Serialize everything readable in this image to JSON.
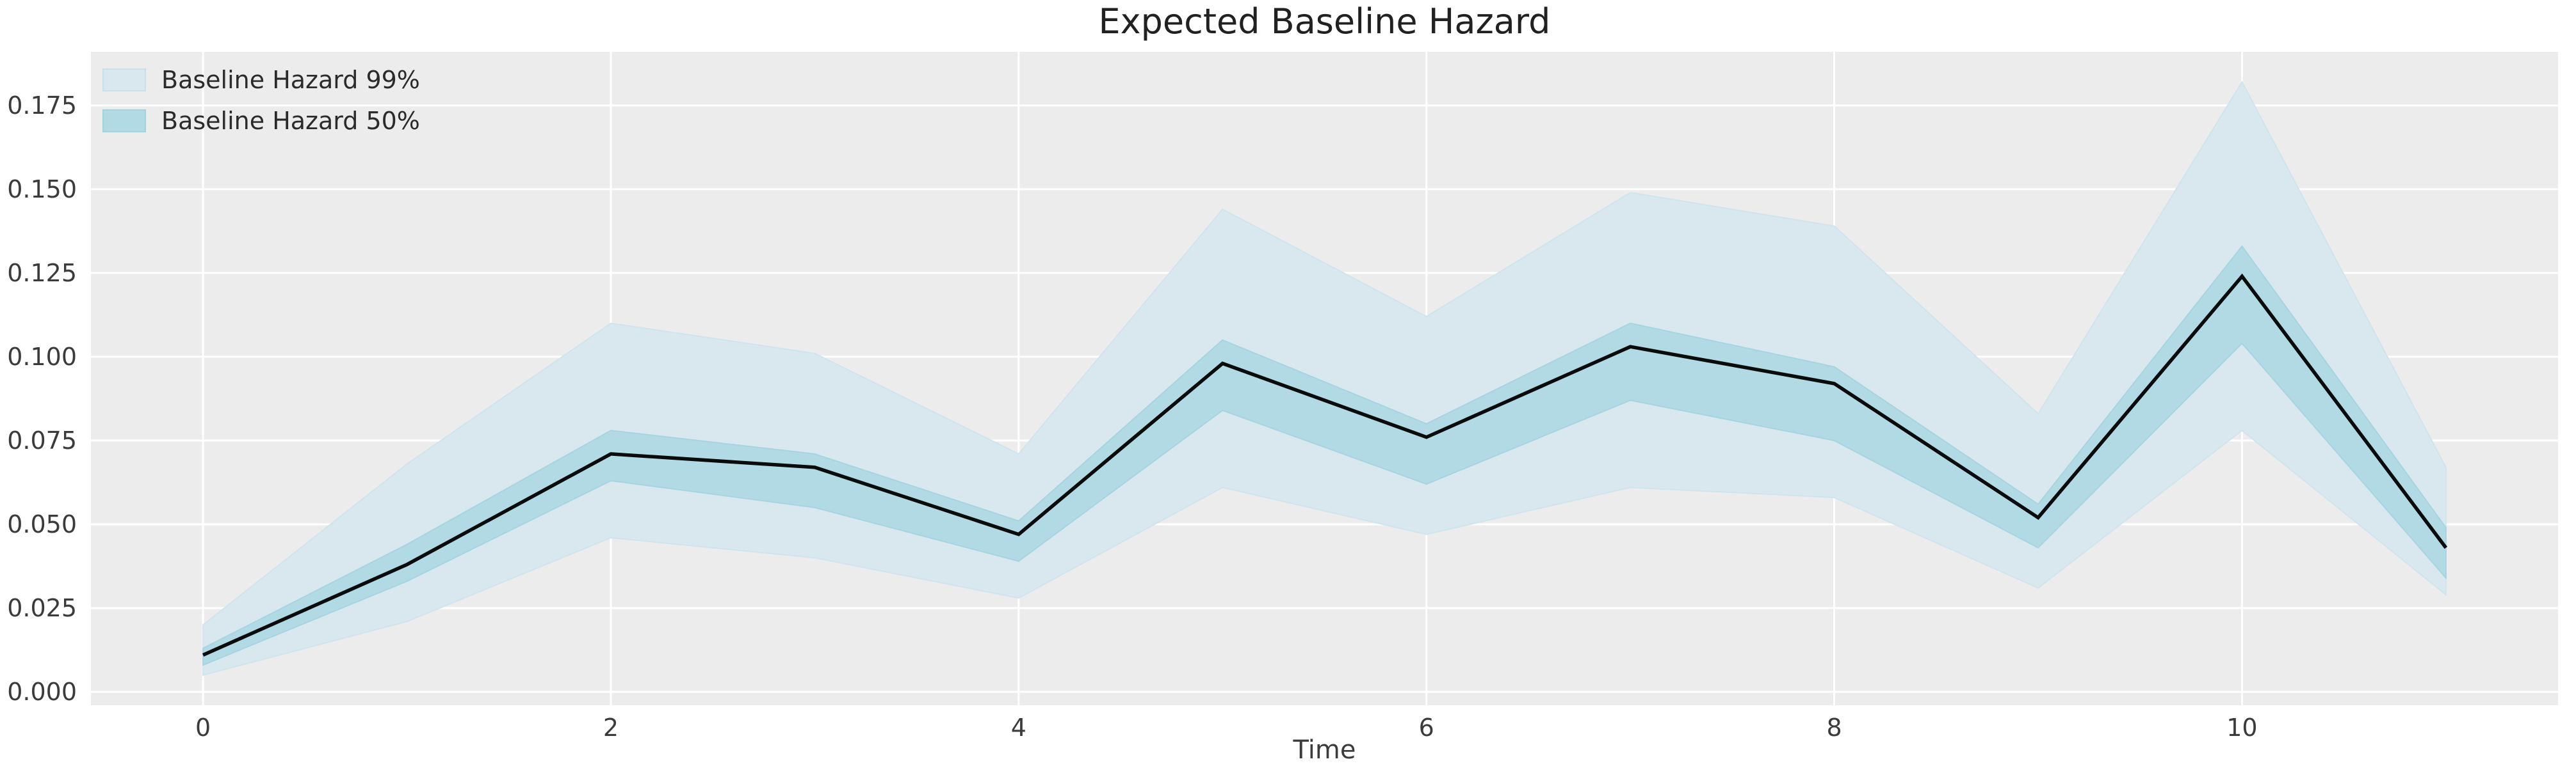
{
  "title": "Expected Baseline Hazard",
  "axes": {
    "xlabel": "Time",
    "x_ticks": [
      0,
      2,
      4,
      6,
      8,
      10
    ],
    "y_ticks": [
      "0.000",
      "0.025",
      "0.050",
      "0.075",
      "0.100",
      "0.125",
      "0.150",
      "0.175"
    ]
  },
  "legend": {
    "entries": [
      {
        "label": "Baseline Hazard 99%",
        "color": "#d9e8ef",
        "border": "#c8e0ea"
      },
      {
        "label": "Baseline Hazard 50%",
        "color": "#b2dae5",
        "border": "#a3d2df"
      }
    ]
  },
  "colors": {
    "figure_background": "#ffffff",
    "plot_background": "#ececec",
    "gridline": "#ffffff",
    "mean_line": "#0b0b0b",
    "band_99_fill": "#d9e8ef",
    "band_99_edge": "#cfe4ed",
    "band_50_fill": "#b2dae5",
    "band_50_edge": "#a6d4e1",
    "tick_label": "#3b3b3b",
    "title_text": "#212121"
  },
  "chart_data": {
    "type": "line",
    "title": "Expected Baseline Hazard",
    "xlabel": "Time",
    "ylabel": "",
    "x": [
      0,
      1,
      2,
      3,
      4,
      5,
      6,
      7,
      8,
      9,
      10,
      11
    ],
    "series": [
      {
        "name": "Expected baseline hazard (mean)",
        "values": [
          0.011,
          0.038,
          0.071,
          0.067,
          0.047,
          0.098,
          0.076,
          0.103,
          0.092,
          0.052,
          0.124,
          0.043
        ]
      }
    ],
    "bands": [
      {
        "name": "Baseline Hazard 99%",
        "lower": [
          0.005,
          0.021,
          0.046,
          0.04,
          0.028,
          0.061,
          0.047,
          0.061,
          0.058,
          0.031,
          0.078,
          0.029
        ],
        "upper": [
          0.02,
          0.068,
          0.11,
          0.101,
          0.071,
          0.144,
          0.112,
          0.149,
          0.139,
          0.083,
          0.182,
          0.067
        ]
      },
      {
        "name": "Baseline Hazard 50%",
        "lower": [
          0.008,
          0.033,
          0.063,
          0.055,
          0.039,
          0.084,
          0.062,
          0.087,
          0.075,
          0.043,
          0.104,
          0.034
        ],
        "upper": [
          0.013,
          0.044,
          0.078,
          0.071,
          0.051,
          0.105,
          0.08,
          0.11,
          0.097,
          0.056,
          0.133,
          0.049
        ]
      }
    ],
    "xlim": [
      -0.55,
      11.55
    ],
    "ylim": [
      -0.004,
      0.191
    ],
    "grid": true,
    "legend_position": "upper-left"
  }
}
